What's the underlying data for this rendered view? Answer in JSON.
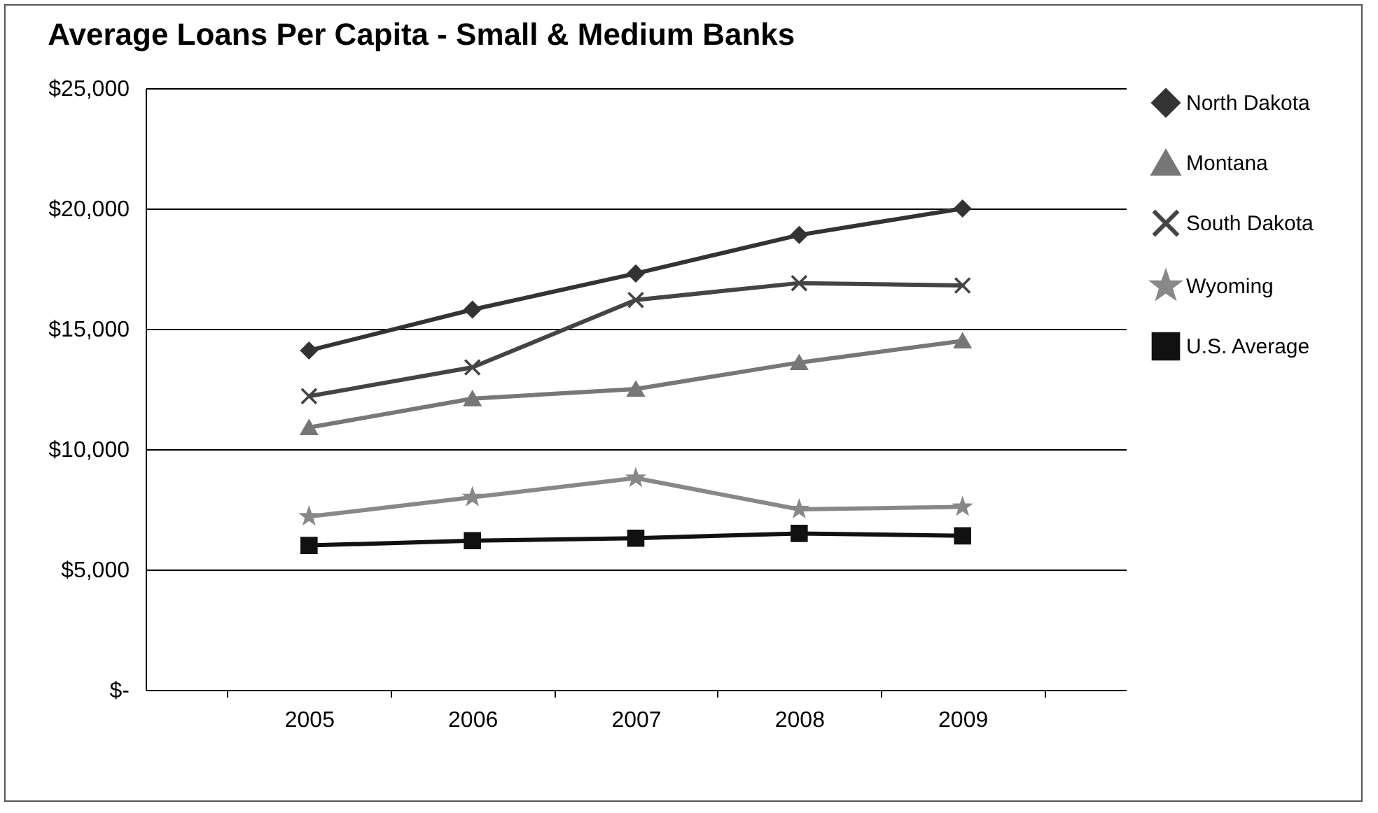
{
  "chart_data": {
    "type": "line",
    "title": "Average Loans Per Capita - Small & Medium Banks",
    "categories": [
      "2005",
      "2006",
      "2007",
      "2008",
      "2009"
    ],
    "series": [
      {
        "name": "North Dakota",
        "color": "#333333",
        "marker": "diamond",
        "values": [
          14100,
          15800,
          17300,
          18900,
          20000
        ]
      },
      {
        "name": "Montana",
        "color": "#777777",
        "marker": "triangle",
        "values": [
          10900,
          12100,
          12500,
          13600,
          14500
        ]
      },
      {
        "name": "South Dakota",
        "color": "#444444",
        "marker": "cross",
        "values": [
          12200,
          13400,
          16200,
          16900,
          16800
        ]
      },
      {
        "name": "Wyoming",
        "color": "#888888",
        "marker": "star",
        "values": [
          7200,
          8000,
          8800,
          7500,
          7600
        ]
      },
      {
        "name": "U.S. Average",
        "color": "#111111",
        "marker": "square",
        "values": [
          6000,
          6200,
          6300,
          6500,
          6400
        ]
      }
    ],
    "ylim": [
      0,
      25000
    ],
    "yticks": [
      {
        "value": 0,
        "label": "$-"
      },
      {
        "value": 5000,
        "label": "$5,000"
      },
      {
        "value": 10000,
        "label": "$10,000"
      },
      {
        "value": 15000,
        "label": "$15,000"
      },
      {
        "value": 20000,
        "label": "$20,000"
      },
      {
        "value": 25000,
        "label": "$25,000"
      }
    ],
    "grid": "y",
    "legend": "right",
    "line_style": "solid"
  }
}
